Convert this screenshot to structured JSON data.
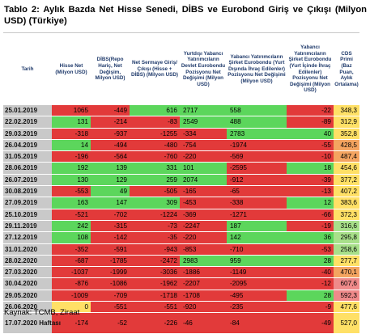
{
  "title": "Tablo 2: Aylık Bazda Net Hisse Senedi, DİBS ve Eurobond Giriş ve Çıkışı (Milyon USD) (Türkiye)",
  "source": "Kaynak: TCMB,  Ziraat",
  "colors": {
    "green": "#5cd65c",
    "light_green": "#a8e08a",
    "yellow": "#ffe066",
    "orange": "#f4a460",
    "light_red": "#ef8a8a",
    "red": "#e23a3a",
    "date_bg": "#c9c9c9"
  },
  "columns": [
    "Tarih",
    "Hisse Net (Milyon USD)",
    "DİBS(Repo Hariç, Net Değişim, Milyon USD)",
    "Net Sermaye Giriş/Çıkışı (Hisse + DİBS) (Milyon USD)",
    "Yurtdışı Yabancı Yatırımcıların Devlet Eurobondu Pozisyonu Net Değişimi (Milyon USD)",
    "Yabancı Yatırımcıların Şirket Eurobondu (Yurt Dışında İhraç Edilenler) Pozisyonu Net Değişimi (Milyon USD)",
    "Yabancı Yatırımcıların Şirket Eurobondu (Yurt İçinde İhraç Edilenler) Pozisyonu Net Değişimi (Milyon USD)",
    "CDS Primi (Baz Puan, Aylık Ortalama)"
  ],
  "rows": [
    {
      "date": "25.01.2019",
      "cells": [
        "1065",
        "-449",
        "616",
        "2717",
        "558",
        "-22",
        "348,3"
      ],
      "bg": [
        "red",
        "red",
        "green",
        "green",
        "green",
        "red",
        "yellow"
      ]
    },
    {
      "date": "22.02.2019",
      "cells": [
        "131",
        "-214",
        "-83",
        "2549",
        "488",
        "-89",
        "312,9"
      ],
      "bg": [
        "green",
        "red",
        "red",
        "green",
        "green",
        "red",
        "yellow"
      ]
    },
    {
      "date": "29.03.2019",
      "cells": [
        "-318",
        "-937",
        "-1255",
        "-334",
        "2783",
        "40",
        "352,8"
      ],
      "bg": [
        "red",
        "red",
        "red",
        "red",
        "green",
        "green",
        "yellow"
      ]
    },
    {
      "date": "26.04.2019",
      "cells": [
        "14",
        "-494",
        "-480",
        "-754",
        "-1974",
        "-55",
        "428,5"
      ],
      "bg": [
        "green",
        "red",
        "red",
        "red",
        "red",
        "red",
        "orange"
      ]
    },
    {
      "date": "31.05.2019",
      "cells": [
        "-196",
        "-564",
        "-760",
        "-220",
        "-569",
        "-10",
        "487,4"
      ],
      "bg": [
        "red",
        "red",
        "red",
        "red",
        "red",
        "red",
        "orange"
      ]
    },
    {
      "date": "28.06.2019",
      "cells": [
        "192",
        "139",
        "331",
        "101",
        "-2595",
        "18",
        "454,6"
      ],
      "bg": [
        "green",
        "green",
        "green",
        "green",
        "red",
        "green",
        "yellow"
      ]
    },
    {
      "date": "26.07.2019",
      "cells": [
        "130",
        "129",
        "259",
        "2074",
        "-912",
        "-39",
        "377,2"
      ],
      "bg": [
        "green",
        "green",
        "green",
        "green",
        "red",
        "red",
        "yellow"
      ]
    },
    {
      "date": "30.08.2019",
      "cells": [
        "-553",
        "49",
        "-505",
        "-165",
        "-65",
        "-13",
        "407,2"
      ],
      "bg": [
        "red",
        "green",
        "red",
        "red",
        "red",
        "red",
        "yellow"
      ]
    },
    {
      "date": "27.09.2019",
      "cells": [
        "163",
        "147",
        "309",
        "-453",
        "-338",
        "12",
        "383,6"
      ],
      "bg": [
        "green",
        "green",
        "green",
        "red",
        "red",
        "green",
        "yellow"
      ]
    },
    {
      "date": "25.10.2019",
      "cells": [
        "-521",
        "-702",
        "-1224",
        "-369",
        "-1271",
        "-66",
        "372,3"
      ],
      "bg": [
        "red",
        "red",
        "red",
        "red",
        "red",
        "red",
        "yellow"
      ]
    },
    {
      "date": "29.11.2019",
      "cells": [
        "242",
        "-315",
        "-73",
        "-2247",
        "187",
        "-19",
        "316,6"
      ],
      "bg": [
        "green",
        "red",
        "red",
        "red",
        "green",
        "red",
        "light_green"
      ]
    },
    {
      "date": "27.12.2019",
      "cells": [
        "108",
        "-142",
        "-35",
        "-220",
        "142",
        "36",
        "295,8"
      ],
      "bg": [
        "green",
        "red",
        "red",
        "red",
        "green",
        "green",
        "light_green"
      ]
    },
    {
      "date": "31.01.2020",
      "cells": [
        "-352",
        "-591",
        "-943",
        "-853",
        "-710",
        "-53",
        "258,6"
      ],
      "bg": [
        "red",
        "red",
        "red",
        "red",
        "red",
        "red",
        "light_green"
      ]
    },
    {
      "date": "28.02.2020",
      "cells": [
        "-687",
        "-1785",
        "-2472",
        "2983",
        "959",
        "28",
        "277,7"
      ],
      "bg": [
        "red",
        "red",
        "red",
        "green",
        "green",
        "green",
        "yellow"
      ]
    },
    {
      "date": "27.03.2020",
      "cells": [
        "-1037",
        "-1999",
        "-3036",
        "-1886",
        "-1149",
        "-40",
        "470,1"
      ],
      "bg": [
        "red",
        "red",
        "red",
        "red",
        "red",
        "red",
        "orange"
      ]
    },
    {
      "date": "30.04.2020",
      "cells": [
        "-876",
        "-1086",
        "-1962",
        "-2207",
        "-2095",
        "-12",
        "607,6"
      ],
      "bg": [
        "red",
        "red",
        "red",
        "red",
        "red",
        "red",
        "light_red"
      ]
    },
    {
      "date": "29.05.2020",
      "cells": [
        "-1009",
        "-709",
        "-1718",
        "-1708",
        "-495",
        "28",
        "592,3"
      ],
      "bg": [
        "red",
        "red",
        "red",
        "red",
        "red",
        "green",
        "light_red"
      ]
    },
    {
      "date": "26.06.2020",
      "cells": [
        "0",
        "-551",
        "-551",
        "-920",
        "-235",
        "-9",
        "477,6"
      ],
      "bg": [
        "yellow",
        "red",
        "red",
        "red",
        "red",
        "red",
        "yellow"
      ]
    },
    {
      "date": "17.07.2020 Haftası",
      "cells": [
        "-174",
        "-52",
        "-226",
        "-46",
        "-84",
        "-49",
        "527,0"
      ],
      "bg": [
        "red",
        "red",
        "red",
        "red",
        "red",
        "red",
        "yellow"
      ]
    }
  ]
}
